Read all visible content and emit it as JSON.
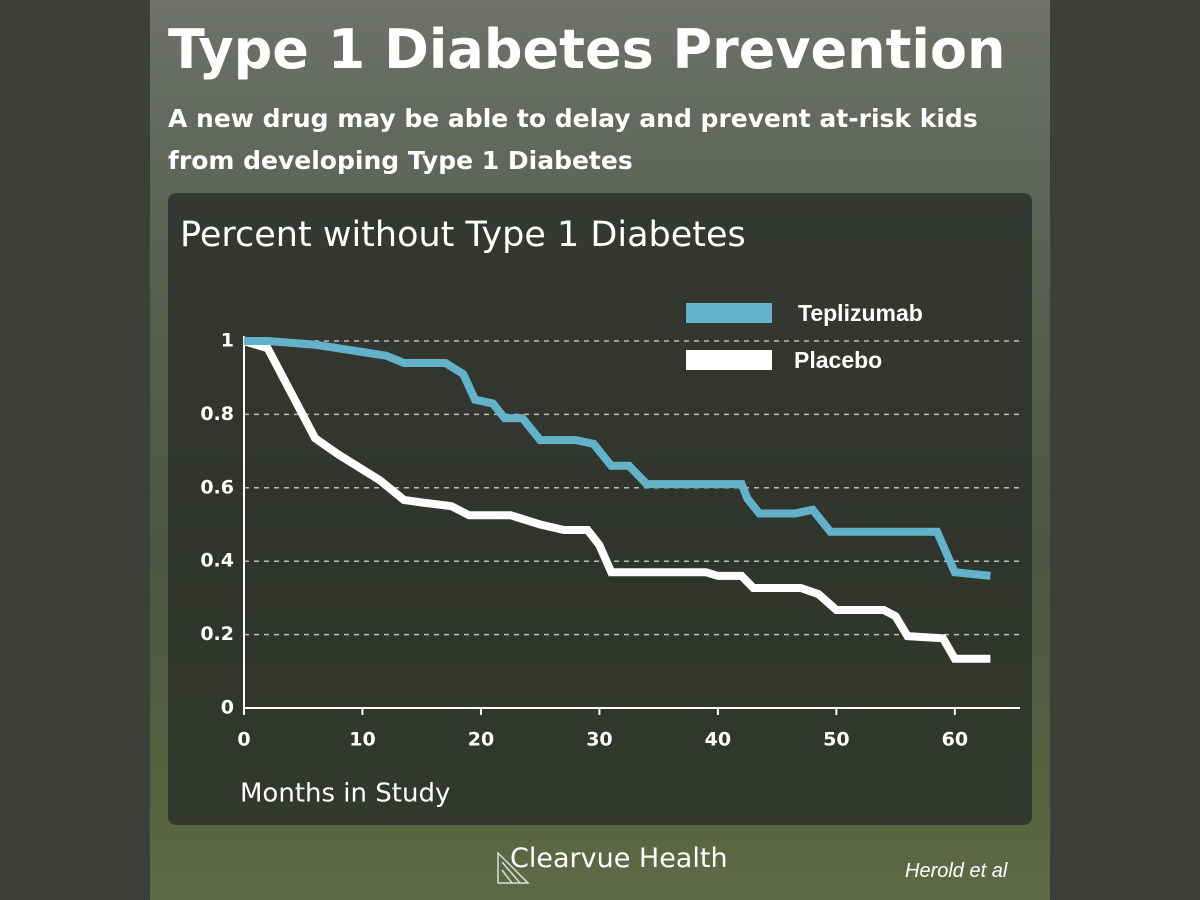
{
  "title": "Type 1 Diabetes Prevention",
  "subtitle": "A new drug may be able to delay and prevent at-risk kids from developing Type 1 Diabetes",
  "brand": "Clearvue Health",
  "credit": "Herold et al",
  "chart_data": {
    "type": "line",
    "title": "Percent without Type 1 Diabetes",
    "x_label": "Months in Study",
    "xlim": [
      0,
      65.5
    ],
    "xticks": [
      0,
      10,
      20,
      30,
      40,
      50,
      60
    ],
    "ylim": [
      0,
      1
    ],
    "yticks": [
      0,
      0.2,
      0.4,
      0.6,
      0.8,
      1
    ],
    "grid": true,
    "legend": "top-right",
    "series": [
      {
        "name": "Teplizumab",
        "color": "#62b3c9",
        "x": [
          0,
          2,
          6,
          10,
          12,
          13.5,
          17,
          18.5,
          19.5,
          21,
          22,
          23.5,
          25,
          28,
          29.5,
          31,
          32.5,
          34,
          42,
          42.5,
          43.5,
          46.5,
          48,
          49.5,
          58.5,
          60,
          63
        ],
        "values": [
          1,
          1,
          0.99,
          0.97,
          0.96,
          0.94,
          0.94,
          0.91,
          0.84,
          0.83,
          0.79,
          0.79,
          0.73,
          0.73,
          0.72,
          0.66,
          0.66,
          0.61,
          0.61,
          0.57,
          0.53,
          0.53,
          0.54,
          0.48,
          0.48,
          0.37,
          0.36
        ]
      },
      {
        "name": "Placebo",
        "color": "#ffffff",
        "x": [
          0,
          2,
          6,
          8,
          11.5,
          13.5,
          15,
          17.5,
          19,
          22.5,
          25,
          27,
          29,
          30,
          31,
          39,
          40,
          42,
          43,
          47,
          48.5,
          50,
          54,
          55,
          56,
          59,
          60,
          63
        ],
        "values": [
          1,
          0.98,
          0.735,
          0.69,
          0.62,
          0.567,
          0.56,
          0.55,
          0.525,
          0.525,
          0.5,
          0.485,
          0.485,
          0.444,
          0.37,
          0.37,
          0.36,
          0.36,
          0.327,
          0.327,
          0.31,
          0.267,
          0.267,
          0.25,
          0.196,
          0.19,
          0.134,
          0.134
        ]
      }
    ]
  }
}
